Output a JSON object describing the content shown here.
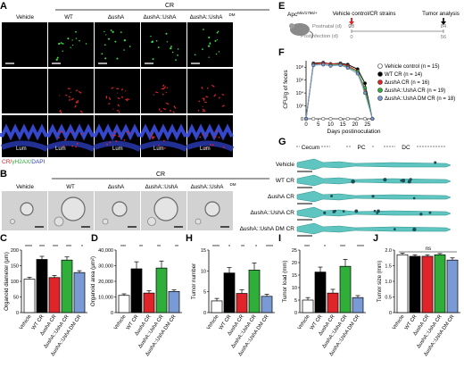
{
  "panels": {
    "A": "A",
    "B": "B",
    "C": "C",
    "D": "D",
    "E": "E",
    "F": "F",
    "G": "G",
    "H": "H",
    "I": "I",
    "J": "J"
  },
  "panelA": {
    "cr_label": "CR",
    "columns": [
      "Vehicle",
      "WT",
      "ΔushA",
      "ΔushA::UshA",
      "ΔushA::UshA",
      "DM"
    ],
    "lum_label": "Lum",
    "legend": [
      {
        "text": "CR/",
        "color": "#e0252a"
      },
      {
        "text": "γH2AX/",
        "color": "#2fae3a"
      },
      {
        "text": "DAPI",
        "color": "#2f40c8"
      }
    ]
  },
  "panelB": {
    "cr_label": "CR",
    "columns": [
      "Vehicle",
      "WT",
      "ΔushA",
      "ΔushA::UshA",
      "ΔushA::UshA",
      "DM"
    ]
  },
  "panelE": {
    "mouse": "Apc",
    "mouse_sup": "Min/1756/+",
    "start_label": "Vehicle control/CR strains",
    "end_label": "Tumor analysis",
    "postnatal": "Postnatal (d)",
    "postinfection": "Postinfection (d)",
    "ticks_top": [
      "0",
      "28",
      "84"
    ],
    "ticks_bottom": [
      "0",
      "56"
    ]
  },
  "chart_data": [
    {
      "id": "F",
      "type": "line",
      "ylabel": "CFU/g of feces",
      "xlabel": "Days postinoculation",
      "x_ticks": [
        "0",
        "5",
        "10",
        "15",
        "20",
        "25"
      ],
      "y_ticks": [
        "0",
        "10²",
        "10⁴",
        "10⁶",
        "10⁸"
      ],
      "x": [
        0,
        3,
        7,
        10,
        14,
        17,
        21,
        24,
        27
      ],
      "series": [
        {
          "name": "Vehicle control (n = 15)",
          "color": "#ffffff",
          "values": [
            0,
            0,
            0,
            0,
            0,
            0,
            0,
            0,
            0
          ]
        },
        {
          "name": "WT CR (n = 14)",
          "color": "#000000",
          "values": [
            0,
            8.6,
            8.7,
            8.5,
            8.6,
            8.4,
            7.7,
            5.5,
            0
          ]
        },
        {
          "name": "ΔushA CR (n = 16)",
          "color": "#e0252a",
          "values": [
            0,
            8.5,
            8.6,
            8.5,
            8.5,
            8.2,
            7.4,
            4.5,
            0
          ]
        },
        {
          "name": "ΔushA::UshA CR (n = 19)",
          "color": "#2fae3a",
          "values": [
            0,
            8.4,
            8.4,
            8.3,
            8.4,
            8.0,
            7.3,
            4.8,
            0
          ]
        },
        {
          "name": "ΔushA::UshA DM CR (n = 18)",
          "color": "#7a9ad6",
          "values": [
            0,
            8.3,
            8.4,
            8.2,
            8.3,
            7.9,
            7.0,
            4.0,
            0
          ]
        }
      ]
    },
    {
      "id": "C",
      "type": "bar",
      "ylabel": "Organoid diameter (μm)",
      "ylim": [
        0,
        200
      ],
      "y_ticks": [
        "0",
        "50",
        "100",
        "150",
        "200"
      ],
      "categories": [
        "Vehicle",
        "WT CR",
        "ΔushA CR",
        "ΔushA::UshA CR",
        "ΔushA::UshA DM CR"
      ],
      "values": [
        107,
        170,
        112,
        168,
        128
      ],
      "errors": [
        6,
        10,
        7,
        10,
        6
      ],
      "sig": [
        "****",
        "***",
        "***",
        "***",
        "*"
      ]
    },
    {
      "id": "D",
      "type": "bar",
      "ylabel": "Organoid area (μm²)",
      "ylim": [
        0,
        40000
      ],
      "y_ticks": [
        "0",
        "10,000",
        "20,000",
        "30,000",
        "40,000"
      ],
      "categories": [
        "Vehicle",
        "WT CR",
        "ΔushA CR",
        "ΔushA::UshA CR",
        "ΔushA::UshA DM CR"
      ],
      "values": [
        11000,
        28000,
        12500,
        28500,
        13500
      ],
      "errors": [
        1000,
        4500,
        1500,
        4500,
        1000
      ],
      "sig": [
        "***",
        "**",
        "**",
        "**"
      ]
    },
    {
      "id": "H",
      "type": "bar",
      "ylabel": "Tumor number",
      "ylim": [
        0,
        15
      ],
      "y_ticks": [
        "0",
        "5",
        "10",
        "15"
      ],
      "categories": [
        "Vehicle",
        "WT CR",
        "ΔushA CR",
        "ΔushA::UshA CR",
        "ΔushA::UshA DM CR"
      ],
      "values": [
        2.8,
        9.5,
        4.6,
        10.2,
        3.9
      ],
      "errors": [
        0.6,
        1.3,
        0.9,
        1.7,
        0.5
      ],
      "sig": [
        "****",
        "*",
        "**",
        "*",
        "****"
      ]
    },
    {
      "id": "I",
      "type": "bar",
      "ylabel": "Tumor load (mm)",
      "ylim": [
        0,
        25
      ],
      "y_ticks": [
        "0",
        "5",
        "10",
        "15",
        "20",
        "25"
      ],
      "categories": [
        "Vehicle",
        "WT CR",
        "ΔushA CR",
        "ΔushA::UshA CR",
        "ΔushA::UshA DM CR"
      ],
      "values": [
        5,
        16.2,
        7.8,
        18.5,
        6
      ],
      "errors": [
        1,
        2,
        1.5,
        2.8,
        0.8
      ],
      "sig": [
        "***",
        "*",
        "***",
        "****"
      ]
    },
    {
      "id": "J",
      "type": "bar",
      "ylabel": "Tumor size (mm)",
      "ylim": [
        0,
        2.0
      ],
      "y_ticks": [
        "0",
        "0.5",
        "1.0",
        "1.5",
        "2.0"
      ],
      "categories": [
        "Vehicle",
        "WT CR",
        "ΔushA CR",
        "ΔushA::UshA CR",
        "ΔushA::UshA DM CR"
      ],
      "values": [
        1.85,
        1.8,
        1.8,
        1.85,
        1.68
      ],
      "errors": [
        0.05,
        0.05,
        0.05,
        0.04,
        0.07
      ],
      "sig": [
        "ns"
      ]
    }
  ],
  "panelG": {
    "regions": [
      "Cecum",
      "PC",
      "DC"
    ],
    "rows": [
      "Vehicle",
      "WT CR",
      "ΔushA CR",
      "ΔushA::UshA CR",
      "ΔushA::UshA DM CR"
    ]
  },
  "colors": {
    "vehicle": "#ffffff",
    "wt": "#000000",
    "dushA": "#e0252a",
    "comp": "#2fae3a",
    "dm": "#7a9ad6",
    "colon": "#5fc5c0"
  }
}
